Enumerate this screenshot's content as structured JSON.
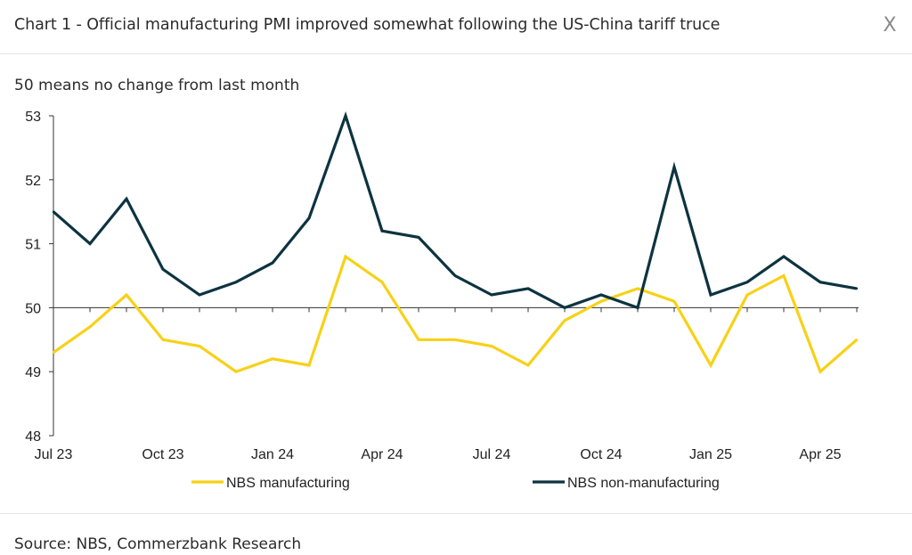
{
  "header": {
    "title": "Chart 1 - Official manufacturing PMI improved somewhat following the US-China tariff truce",
    "close_label": "X"
  },
  "footer": {
    "source": "Source: NBS, Commerzbank Research"
  },
  "chart_data": {
    "type": "line",
    "title": "",
    "subtitle": "50 means no change from last month",
    "xlabel": "",
    "ylabel": "",
    "ylim": [
      48,
      53
    ],
    "yticks": [
      48,
      49,
      50,
      51,
      52,
      53
    ],
    "baseline": 50,
    "x": [
      "Jul 23",
      "Aug 23",
      "Sep 23",
      "Oct 23",
      "Nov 23",
      "Dec 23",
      "Jan 24",
      "Feb 24",
      "Mar 24",
      "Apr 24",
      "May 24",
      "Jun 24",
      "Jul 24",
      "Aug 24",
      "Sep 24",
      "Oct 24",
      "Nov 24",
      "Dec 24",
      "Jan 25",
      "Feb 25",
      "Mar 25",
      "Apr 25",
      "May 25"
    ],
    "xtick_labels": [
      "Jul 23",
      "Oct 23",
      "Jan 24",
      "Apr 24",
      "Jul 24",
      "Oct 24",
      "Jan 25",
      "Apr 25"
    ],
    "legend_position": "bottom",
    "series": [
      {
        "name": "NBS manufacturing",
        "color": "#f7d117",
        "values": [
          49.3,
          49.7,
          50.2,
          49.5,
          49.4,
          49.0,
          49.2,
          49.1,
          50.8,
          50.4,
          49.5,
          49.5,
          49.4,
          49.1,
          49.8,
          50.1,
          50.3,
          50.1,
          49.1,
          50.2,
          50.5,
          49.0,
          49.5
        ]
      },
      {
        "name": "NBS non-manufacturing",
        "color": "#0d3340",
        "values": [
          51.5,
          51.0,
          51.7,
          50.6,
          50.2,
          50.4,
          50.7,
          51.4,
          53.0,
          51.2,
          51.1,
          50.5,
          50.2,
          50.3,
          50.0,
          50.2,
          50.0,
          52.2,
          50.2,
          50.4,
          50.8,
          50.4,
          50.3
        ]
      }
    ]
  }
}
